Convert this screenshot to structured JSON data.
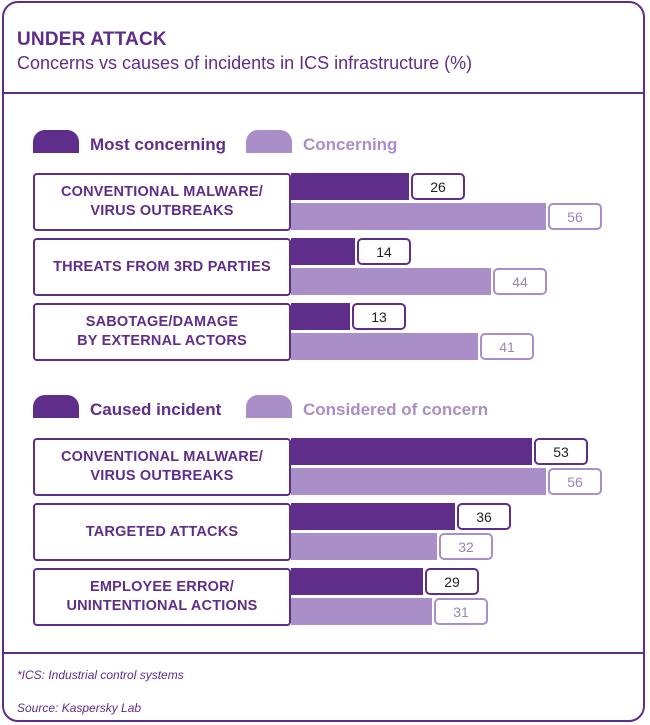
{
  "title": "UNDER ATTACK",
  "subtitle": "Concerns vs causes of incidents in ICS infrastructure (%)",
  "colors": {
    "dark": "#5f2d8a",
    "light": "#a98ec7",
    "border": "#5f2d8a"
  },
  "chart_data": [
    {
      "type": "bar",
      "orientation": "horizontal",
      "title": "Concerns vs causes of incidents in ICS infrastructure (%)",
      "legend": {
        "series_a": "Most concerning",
        "series_b": "Concerning"
      },
      "categories": [
        "CONVENTIONAL MALWARE/\nVIRUS OUTBREAKS",
        "THREATS FROM 3RD PARTIES",
        "SABOTAGE/DAMAGE\nBY EXTERNAL ACTORS"
      ],
      "series": [
        {
          "name": "Most concerning",
          "values": [
            26,
            14,
            13
          ]
        },
        {
          "name": "Concerning",
          "values": [
            56,
            44,
            41
          ]
        }
      ],
      "xlim": [
        0,
        100
      ]
    },
    {
      "type": "bar",
      "orientation": "horizontal",
      "legend": {
        "series_a": "Caused incident",
        "series_b": "Considered of concern"
      },
      "categories": [
        "CONVENTIONAL MALWARE/\nVIRUS OUTBREAKS",
        "TARGETED ATTACKS",
        "EMPLOYEE ERROR/\nUNINTENTIONAL ACTIONS"
      ],
      "series": [
        {
          "name": "Caused incident",
          "values": [
            53,
            36,
            29
          ]
        },
        {
          "name": "Considered of concern",
          "values": [
            56,
            32,
            31
          ]
        }
      ],
      "xlim": [
        0,
        100
      ]
    }
  ],
  "footnote": "*ICS: Industrial control systems",
  "source": "Source: Kaspersky Lab"
}
